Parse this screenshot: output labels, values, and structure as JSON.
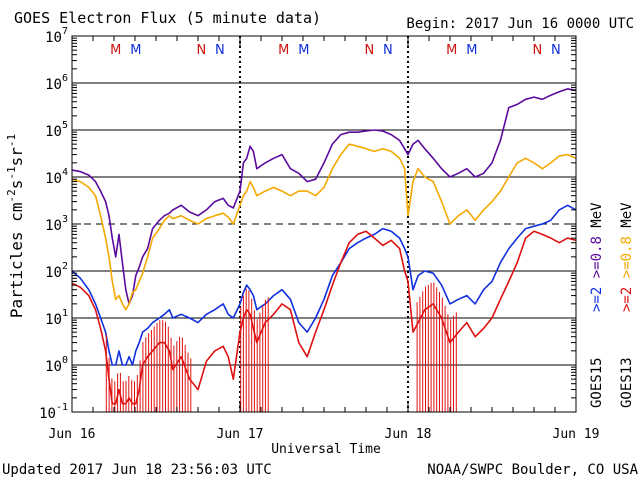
{
  "header": {
    "title": "GOES Electron Flux (5 minute data)",
    "begin": "Begin: 2017 Jun 16 0000 UTC"
  },
  "footer": {
    "updated": "Updated 2017 Jun 18 23:56:03 UTC",
    "credit": "NOAA/SWPC Boulder, CO USA"
  },
  "colors": {
    "goes13_08": "#f5a800",
    "goes15_08": "#5a0a9e",
    "goes13_2": "#e01010",
    "goes15_2": "#1030e0",
    "marker_M": "#d01010",
    "marker_N_red": "#d01010",
    "marker_N_blue": "#1030e0",
    "marker_M_blue": "#1030e0"
  },
  "legend": {
    "left_column": [
      {
        "text": ">=2",
        "color": "#1030e0"
      },
      {
        "text": ">=0.8",
        "color": "#5a0a9e"
      },
      {
        "text": "MeV",
        "color": "#000000"
      }
    ],
    "right_column": [
      {
        "text": ">=2",
        "color": "#e01010"
      },
      {
        "text": ">=0.8",
        "color": "#f5a800"
      },
      {
        "text": "MeV",
        "color": "#000000"
      }
    ],
    "sat_left": "GOES15",
    "sat_right": "GOES13"
  },
  "markers": [
    {
      "label": "M",
      "day": 0.26,
      "color": "#d01010"
    },
    {
      "label": "M",
      "day": 0.38,
      "color": "#1030e0"
    },
    {
      "label": "N",
      "day": 0.77,
      "color": "#d01010"
    },
    {
      "label": "N",
      "day": 0.88,
      "color": "#1030e0"
    },
    {
      "label": "M",
      "day": 1.26,
      "color": "#d01010"
    },
    {
      "label": "M",
      "day": 1.38,
      "color": "#1030e0"
    },
    {
      "label": "N",
      "day": 1.77,
      "color": "#d01010"
    },
    {
      "label": "N",
      "day": 1.88,
      "color": "#1030e0"
    },
    {
      "label": "M",
      "day": 2.26,
      "color": "#d01010"
    },
    {
      "label": "M",
      "day": 2.38,
      "color": "#1030e0"
    },
    {
      "label": "N",
      "day": 2.77,
      "color": "#d01010"
    },
    {
      "label": "N",
      "day": 2.88,
      "color": "#1030e0"
    }
  ],
  "chart_data": {
    "type": "line",
    "title": "GOES Electron Flux (5 minute data)",
    "xlabel": "Universal Time",
    "ylabel": "Particles cm-2s-1sr-1",
    "ylabel_parts": {
      "base": "Particles cm",
      "e1": "-2",
      "s": "s",
      "e2": "-1",
      "sr": "sr",
      "e3": "-1"
    },
    "y_scale": "log",
    "ylim": [
      0.1,
      10000000
    ],
    "xlim": [
      0,
      3
    ],
    "x_unit": "days since 2017 Jun 16 0000 UTC",
    "x_ticks": [
      {
        "value": 0,
        "label": "Jun 16"
      },
      {
        "value": 1,
        "label": "Jun 17"
      },
      {
        "value": 2,
        "label": "Jun 18"
      },
      {
        "value": 3,
        "label": "Jun 19"
      }
    ],
    "y_ticks": [
      {
        "value": 0.1,
        "base": "10",
        "exp": "-1"
      },
      {
        "value": 1,
        "base": "10",
        "exp": "0"
      },
      {
        "value": 10,
        "base": "10",
        "exp": "1"
      },
      {
        "value": 100,
        "base": "10",
        "exp": "2"
      },
      {
        "value": 1000,
        "base": "10",
        "exp": "3"
      },
      {
        "value": 10000,
        "base": "10",
        "exp": "4"
      },
      {
        "value": 100000,
        "base": "10",
        "exp": "5"
      },
      {
        "value": 1000000,
        "base": "10",
        "exp": "6"
      },
      {
        "value": 10000000,
        "base": "10",
        "exp": "7"
      }
    ],
    "threshold_line": 1000,
    "day_boundaries": [
      1,
      2
    ],
    "series": [
      {
        "name": "GOES15 >=0.8 MeV",
        "color": "#5a0a9e",
        "x": [
          0,
          0.05,
          0.1,
          0.14,
          0.17,
          0.2,
          0.22,
          0.24,
          0.26,
          0.28,
          0.3,
          0.32,
          0.34,
          0.36,
          0.38,
          0.4,
          0.42,
          0.45,
          0.48,
          0.52,
          0.55,
          0.58,
          0.6,
          0.65,
          0.7,
          0.75,
          0.8,
          0.85,
          0.9,
          0.93,
          0.96,
          1.0,
          1.02,
          1.04,
          1.06,
          1.08,
          1.1,
          1.15,
          1.2,
          1.25,
          1.3,
          1.35,
          1.4,
          1.45,
          1.5,
          1.55,
          1.6,
          1.65,
          1.7,
          1.75,
          1.8,
          1.85,
          1.9,
          1.95,
          1.98,
          2.0,
          2.03,
          2.06,
          2.1,
          2.15,
          2.2,
          2.25,
          2.3,
          2.35,
          2.4,
          2.45,
          2.5,
          2.55,
          2.6,
          2.65,
          2.7,
          2.75,
          2.8,
          2.85,
          2.9,
          2.95,
          3.0
        ],
        "y": [
          14000,
          13000,
          11000,
          8000,
          5000,
          3000,
          1500,
          500,
          200,
          600,
          150,
          40,
          20,
          30,
          80,
          120,
          200,
          300,
          800,
          1200,
          1500,
          1700,
          2000,
          2500,
          1800,
          1500,
          2000,
          3000,
          3500,
          2500,
          2200,
          5000,
          20000,
          25000,
          45000,
          35000,
          15000,
          20000,
          25000,
          30000,
          15000,
          12000,
          8000,
          9000,
          20000,
          50000,
          80000,
          90000,
          90000,
          95000,
          100000,
          95000,
          80000,
          60000,
          40000,
          30000,
          50000,
          60000,
          40000,
          25000,
          15000,
          10000,
          12000,
          15000,
          10000,
          12000,
          20000,
          60000,
          300000,
          350000,
          450000,
          500000,
          450000,
          550000,
          650000,
          750000,
          700000
        ]
      },
      {
        "name": "GOES13 >=0.8 MeV",
        "color": "#f5a800",
        "x": [
          0,
          0.05,
          0.1,
          0.14,
          0.17,
          0.2,
          0.22,
          0.24,
          0.26,
          0.28,
          0.3,
          0.32,
          0.34,
          0.36,
          0.38,
          0.4,
          0.42,
          0.45,
          0.48,
          0.52,
          0.55,
          0.58,
          0.6,
          0.65,
          0.7,
          0.75,
          0.8,
          0.85,
          0.9,
          0.93,
          0.96,
          1.0,
          1.02,
          1.04,
          1.06,
          1.08,
          1.1,
          1.15,
          1.2,
          1.25,
          1.3,
          1.35,
          1.4,
          1.45,
          1.5,
          1.55,
          1.6,
          1.65,
          1.7,
          1.75,
          1.8,
          1.85,
          1.9,
          1.95,
          1.98,
          2.0,
          2.03,
          2.06,
          2.1,
          2.15,
          2.2,
          2.25,
          2.3,
          2.35,
          2.4,
          2.45,
          2.5,
          2.55,
          2.6,
          2.65,
          2.7,
          2.75,
          2.8,
          2.85,
          2.9,
          2.95,
          3.0
        ],
        "y": [
          9000,
          8000,
          6000,
          4000,
          1500,
          500,
          200,
          60,
          25,
          30,
          20,
          15,
          20,
          35,
          40,
          60,
          90,
          200,
          500,
          800,
          1200,
          1500,
          1300,
          1500,
          1200,
          1000,
          1300,
          1500,
          1700,
          1400,
          1000,
          2500,
          4000,
          5000,
          8000,
          6000,
          4000,
          5000,
          6000,
          5000,
          4000,
          5000,
          5000,
          4000,
          6000,
          15000,
          30000,
          50000,
          45000,
          40000,
          35000,
          40000,
          35000,
          25000,
          15000,
          1500,
          8000,
          15000,
          10000,
          8000,
          3000,
          1000,
          1500,
          2000,
          1200,
          2000,
          3000,
          5000,
          10000,
          20000,
          25000,
          20000,
          15000,
          20000,
          28000,
          30000,
          25000
        ]
      },
      {
        "name": "GOES15 >=2 MeV",
        "color": "#1030e0",
        "x": [
          0,
          0.05,
          0.1,
          0.14,
          0.17,
          0.2,
          0.22,
          0.24,
          0.26,
          0.28,
          0.3,
          0.32,
          0.34,
          0.36,
          0.38,
          0.4,
          0.42,
          0.45,
          0.48,
          0.52,
          0.55,
          0.58,
          0.6,
          0.65,
          0.7,
          0.75,
          0.8,
          0.85,
          0.9,
          0.93,
          0.96,
          1.0,
          1.02,
          1.04,
          1.06,
          1.08,
          1.1,
          1.15,
          1.2,
          1.25,
          1.3,
          1.35,
          1.4,
          1.45,
          1.5,
          1.55,
          1.6,
          1.65,
          1.7,
          1.75,
          1.8,
          1.85,
          1.9,
          1.95,
          1.98,
          2.0,
          2.03,
          2.06,
          2.1,
          2.15,
          2.2,
          2.25,
          2.3,
          2.35,
          2.4,
          2.45,
          2.5,
          2.55,
          2.6,
          2.65,
          2.7,
          2.75,
          2.8,
          2.85,
          2.9,
          2.95,
          3.0
        ],
        "y": [
          100,
          70,
          40,
          20,
          10,
          5,
          2,
          1,
          1,
          2,
          1,
          1,
          1.5,
          1,
          2,
          3,
          5,
          6,
          8,
          10,
          12,
          15,
          10,
          12,
          10,
          8,
          12,
          15,
          20,
          12,
          10,
          20,
          35,
          50,
          40,
          30,
          15,
          20,
          30,
          40,
          25,
          8,
          5,
          10,
          25,
          80,
          150,
          300,
          400,
          500,
          600,
          800,
          700,
          500,
          300,
          200,
          40,
          80,
          100,
          90,
          50,
          20,
          25,
          30,
          20,
          40,
          60,
          150,
          300,
          500,
          800,
          900,
          1000,
          1200,
          2000,
          2500,
          2000
        ]
      },
      {
        "name": "GOES13 >=2 MeV",
        "color": "#e01010",
        "x": [
          0,
          0.05,
          0.1,
          0.14,
          0.17,
          0.2,
          0.22,
          0.24,
          0.26,
          0.28,
          0.3,
          0.32,
          0.34,
          0.36,
          0.38,
          0.4,
          0.42,
          0.45,
          0.48,
          0.52,
          0.55,
          0.58,
          0.6,
          0.65,
          0.7,
          0.75,
          0.8,
          0.85,
          0.9,
          0.93,
          0.96,
          1.0,
          1.02,
          1.04,
          1.06,
          1.08,
          1.1,
          1.15,
          1.2,
          1.25,
          1.3,
          1.35,
          1.4,
          1.45,
          1.5,
          1.55,
          1.6,
          1.65,
          1.7,
          1.75,
          1.8,
          1.85,
          1.9,
          1.95,
          1.98,
          2.0,
          2.03,
          2.06,
          2.1,
          2.15,
          2.2,
          2.25,
          2.3,
          2.35,
          2.4,
          2.45,
          2.5,
          2.55,
          2.6,
          2.65,
          2.7,
          2.75,
          2.8,
          2.85,
          2.9,
          2.95,
          3.0
        ],
        "y": [
          55,
          45,
          30,
          15,
          6,
          2,
          0.5,
          0.15,
          0.15,
          0.3,
          0.15,
          0.15,
          0.2,
          0.15,
          0.15,
          0.3,
          1,
          1.5,
          2,
          3,
          3,
          2,
          0.8,
          1.5,
          0.5,
          0.3,
          1.2,
          2,
          2.5,
          1.5,
          0.5,
          5,
          10,
          15,
          12,
          6,
          3,
          8,
          12,
          20,
          15,
          3,
          1.5,
          5,
          15,
          50,
          150,
          400,
          600,
          700,
          500,
          350,
          450,
          300,
          100,
          60,
          5,
          8,
          15,
          20,
          10,
          3,
          5,
          8,
          4,
          6,
          10,
          25,
          60,
          150,
          500,
          700,
          600,
          500,
          400,
          500,
          450
        ]
      }
    ],
    "dropouts": {
      "GOES13 >=2 MeV": [
        [
          0.2,
          0.72
        ],
        [
          1.0,
          1.18
        ],
        [
          2.05,
          2.3
        ]
      ]
    }
  }
}
